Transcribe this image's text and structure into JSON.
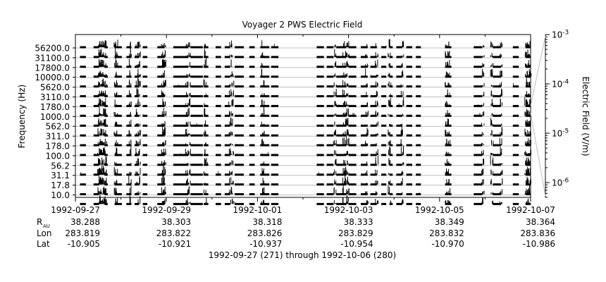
{
  "chart_data": {
    "type": "line",
    "title": "Voyager 2 PWS Electric Field",
    "ylabel": "Frequency (Hz)",
    "y2label": "Electric Field (V/m)",
    "caption": "1992-09-27 (271) through 1992-10-06 (280)",
    "frequency_ticks": [
      "56200.0",
      "31100.0",
      "17800.0",
      "10000.0",
      "5620.0",
      "3110.0",
      "1780.0",
      "1000.0",
      "562.0",
      "311.0",
      "178.0",
      "100.0",
      "56.2",
      "31.1",
      "17.8",
      "10.0"
    ],
    "color_scale": {
      "type": "log",
      "range": [
        5e-07,
        0.001
      ],
      "ticks": [
        {
          "base": "10",
          "exp": "-3"
        },
        {
          "base": "10",
          "exp": "-4"
        },
        {
          "base": "10",
          "exp": "-5"
        },
        {
          "base": "10",
          "exp": "-6"
        }
      ]
    },
    "x_range": [
      "1992-09-27",
      "1992-10-07"
    ],
    "x_ticks": [
      "1992-09-27",
      "1992-09-29",
      "1992-10-01",
      "1992-10-03",
      "1992-10-05",
      "1992-10-07"
    ],
    "ephemeris": {
      "rows": [
        {
          "label_main": "R",
          "label_sub": "AU",
          "values": [
            "38.288",
            "38.303",
            "38.318",
            "38.333",
            "38.349",
            "38.364"
          ]
        },
        {
          "label_main": "Lon",
          "label_sub": "",
          "values": [
            "283.819",
            "283.822",
            "283.826",
            "283.829",
            "283.832",
            "283.836"
          ]
        },
        {
          "label_main": "Lat",
          "label_sub": "",
          "values": [
            "-10.905",
            "-10.921",
            "-10.937",
            "-10.954",
            "-10.970",
            "-10.986"
          ]
        }
      ]
    },
    "coverage_segments": [
      [
        0.1,
        0.23
      ],
      [
        0.4,
        0.52
      ],
      [
        0.64,
        0.71
      ],
      [
        0.86,
        1.02
      ],
      [
        1.12,
        1.23
      ],
      [
        1.3,
        1.4
      ],
      [
        1.48,
        1.58
      ],
      [
        1.8,
        1.96
      ],
      [
        2.15,
        2.48
      ],
      [
        2.53,
        2.8
      ],
      [
        2.82,
        2.92
      ],
      [
        3.08,
        3.2
      ],
      [
        3.28,
        3.4
      ],
      [
        3.5,
        3.7
      ],
      [
        3.82,
        3.94
      ],
      [
        4.06,
        4.26
      ],
      [
        4.3,
        4.46
      ],
      [
        5.3,
        5.46
      ],
      [
        5.52,
        5.67
      ],
      [
        5.73,
        5.95
      ],
      [
        6.0,
        6.17
      ],
      [
        6.27,
        6.42
      ],
      [
        6.48,
        6.62
      ],
      [
        6.72,
        6.83
      ],
      [
        6.9,
        6.97
      ],
      [
        7.05,
        7.18
      ],
      [
        7.27,
        7.4
      ],
      [
        7.48,
        7.59
      ],
      [
        8.12,
        8.26
      ],
      [
        8.75,
        8.94
      ],
      [
        9.17,
        9.35
      ],
      [
        9.61,
        9.74
      ],
      [
        9.89,
        10.0
      ]
    ],
    "burst_days": [
      0.52,
      0.53,
      0.55,
      0.57,
      0.6,
      0.62,
      0.64,
      0.66,
      0.88,
      0.9,
      1.2,
      1.36,
      1.4,
      1.92,
      1.94,
      1.96,
      2.45,
      2.5,
      2.85,
      3.4,
      3.45,
      4.12,
      5.7,
      5.9,
      5.96,
      5.98,
      6.4,
      6.62,
      6.9,
      7.18,
      8.15,
      8.2,
      8.95,
      9.15,
      9.35,
      9.9,
      9.93,
      9.96,
      9.98
    ]
  }
}
